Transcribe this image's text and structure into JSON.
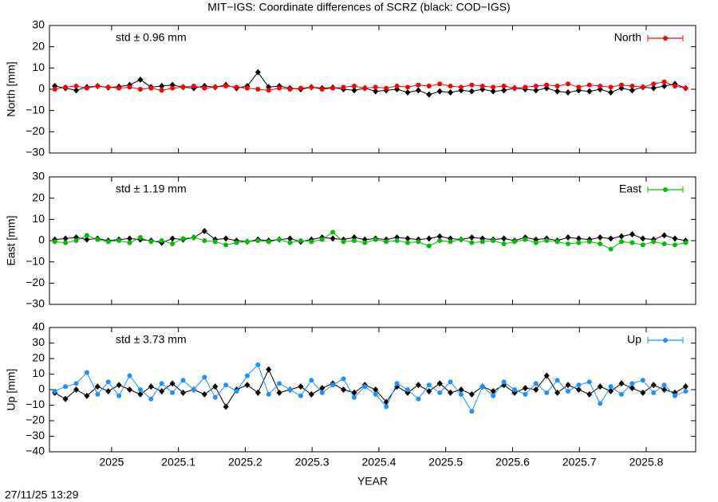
{
  "title": "MIT−IGS: Coordinate differences of SCRZ (black: COD−IGS)",
  "timestamp": "27/11/25 13:29",
  "chart_data": [
    {
      "type": "line",
      "ylabel": "North [mm]",
      "annotation": "std ± 0.96 mm",
      "legend": "top-right",
      "xlim": [
        2024.907,
        2025.874
      ],
      "xticks": [
        2025,
        2025.1,
        2025.2,
        2025.3,
        2025.4,
        2025.5,
        2025.6,
        2025.7,
        2025.8
      ],
      "show_xtick_labels": false,
      "ylim": [
        -30,
        30
      ],
      "yticks": [
        {
          "value": -30,
          "label": "−30"
        },
        {
          "value": -20,
          "label": "−20"
        },
        {
          "value": -10,
          "label": "−10"
        },
        0,
        10,
        20,
        30
      ],
      "x": [
        2024.915,
        2024.931,
        2024.947,
        2024.963,
        2024.979,
        2024.995,
        2025.011,
        2025.027,
        2025.043,
        2025.059,
        2025.075,
        2025.091,
        2025.107,
        2025.123,
        2025.139,
        2025.155,
        2025.171,
        2025.187,
        2025.203,
        2025.219,
        2025.235,
        2025.251,
        2025.267,
        2025.283,
        2025.299,
        2025.315,
        2025.331,
        2025.347,
        2025.363,
        2025.379,
        2025.395,
        2025.411,
        2025.427,
        2025.443,
        2025.459,
        2025.475,
        2025.491,
        2025.507,
        2025.523,
        2025.539,
        2025.555,
        2025.571,
        2025.587,
        2025.603,
        2025.619,
        2025.635,
        2025.651,
        2025.667,
        2025.683,
        2025.699,
        2025.715,
        2025.731,
        2025.747,
        2025.763,
        2025.779,
        2025.795,
        2025.811,
        2025.827,
        2025.843,
        2025.859
      ],
      "series": [
        {
          "color": "#000000",
          "values": [
            1.5,
            0.5,
            -0.5,
            1.0,
            1.5,
            0.8,
            1.2,
            2.0,
            4.5,
            1.0,
            1.5,
            2.0,
            1.0,
            0.5,
            1.5,
            1.0,
            2.0,
            0.5,
            1.5,
            8.0,
            1.0,
            1.5,
            0.5,
            0.0,
            1.0,
            0.5,
            0.8,
            0.0,
            -0.5,
            0.5,
            -1.0,
            -0.5,
            0.0,
            -1.5,
            -0.5,
            -2.5,
            -1.0,
            -1.5,
            -0.5,
            -1.0,
            0.0,
            -1.0,
            -0.5,
            0.5,
            0.0,
            -0.5,
            0.5,
            -1.0,
            -1.5,
            -0.5,
            -1.0,
            0.0,
            -1.5,
            0.5,
            -0.5,
            1.0,
            0.5,
            1.5,
            2.5,
            0.5
          ]
        },
        {
          "name": "North",
          "color": "#ff0000",
          "values": [
            0.0,
            1.0,
            1.5,
            0.5,
            1.5,
            1.0,
            0.5,
            1.0,
            0.0,
            0.5,
            -0.5,
            0.5,
            1.0,
            1.5,
            0.5,
            1.0,
            1.5,
            1.0,
            0.5,
            0.0,
            -0.5,
            0.5,
            0.0,
            0.5,
            1.0,
            0.0,
            0.5,
            1.0,
            1.5,
            0.5,
            1.0,
            0.5,
            1.5,
            1.0,
            2.0,
            1.5,
            2.5,
            1.5,
            1.0,
            2.0,
            1.5,
            1.0,
            1.5,
            0.5,
            1.0,
            1.5,
            2.0,
            1.5,
            2.5,
            1.0,
            2.0,
            1.5,
            1.0,
            2.0,
            1.5,
            1.0,
            2.5,
            3.5,
            1.5,
            0.5
          ]
        }
      ]
    },
    {
      "type": "line",
      "ylabel": "East [mm]",
      "annotation": "std ± 1.19 mm",
      "legend": "top-right",
      "xlim": [
        2024.907,
        2025.874
      ],
      "xticks": [
        2025,
        2025.1,
        2025.2,
        2025.3,
        2025.4,
        2025.5,
        2025.6,
        2025.7,
        2025.8
      ],
      "show_xtick_labels": false,
      "ylim": [
        -30,
        30
      ],
      "yticks": [
        {
          "value": -30,
          "label": "−30"
        },
        {
          "value": -20,
          "label": "−20"
        },
        {
          "value": -10,
          "label": "−10"
        },
        0,
        10,
        20,
        30
      ],
      "x": [
        2024.915,
        2024.931,
        2024.947,
        2024.963,
        2024.979,
        2024.995,
        2025.011,
        2025.027,
        2025.043,
        2025.059,
        2025.075,
        2025.091,
        2025.107,
        2025.123,
        2025.139,
        2025.155,
        2025.171,
        2025.187,
        2025.203,
        2025.219,
        2025.235,
        2025.251,
        2025.267,
        2025.283,
        2025.299,
        2025.315,
        2025.331,
        2025.347,
        2025.363,
        2025.379,
        2025.395,
        2025.411,
        2025.427,
        2025.443,
        2025.459,
        2025.475,
        2025.491,
        2025.507,
        2025.523,
        2025.539,
        2025.555,
        2025.571,
        2025.587,
        2025.603,
        2025.619,
        2025.635,
        2025.651,
        2025.667,
        2025.683,
        2025.699,
        2025.715,
        2025.731,
        2025.747,
        2025.763,
        2025.779,
        2025.795,
        2025.811,
        2025.827,
        2025.843,
        2025.859
      ],
      "series": [
        {
          "color": "#000000",
          "values": [
            0.5,
            1.0,
            1.5,
            0.5,
            1.0,
            0.0,
            0.5,
            1.0,
            0.5,
            0.0,
            -1.0,
            1.0,
            0.5,
            1.5,
            4.5,
            0.5,
            1.0,
            0.0,
            -0.5,
            0.5,
            0.0,
            0.5,
            1.0,
            -0.5,
            0.5,
            1.5,
            1.0,
            0.5,
            1.5,
            0.5,
            1.0,
            0.5,
            1.5,
            1.0,
            0.5,
            1.0,
            2.0,
            1.0,
            0.5,
            1.5,
            1.0,
            0.5,
            1.0,
            0.0,
            1.5,
            0.5,
            1.0,
            0.0,
            1.5,
            1.0,
            0.5,
            1.5,
            1.0,
            2.0,
            3.0,
            1.0,
            0.5,
            2.5,
            1.0,
            0.0
          ]
        },
        {
          "name": "East",
          "color": "#00c000",
          "values": [
            -0.5,
            -1.0,
            0.0,
            2.5,
            0.5,
            -0.5,
            0.0,
            -1.0,
            1.5,
            -0.5,
            0.0,
            -1.5,
            1.0,
            1.5,
            0.0,
            -0.5,
            -2.0,
            -1.0,
            -0.5,
            0.0,
            -0.5,
            0.5,
            -1.0,
            0.0,
            -0.5,
            0.5,
            4.0,
            -0.5,
            0.0,
            -1.0,
            0.5,
            -0.5,
            0.0,
            -1.0,
            -0.5,
            -2.5,
            0.0,
            -0.5,
            0.5,
            -1.0,
            -0.5,
            0.0,
            -1.5,
            -0.5,
            0.5,
            -1.0,
            0.0,
            -0.5,
            -1.5,
            -1.0,
            -0.5,
            -1.5,
            -4.0,
            -0.5,
            -1.0,
            -2.0,
            -0.5,
            -1.5,
            -2.0,
            -1.0
          ]
        }
      ]
    },
    {
      "type": "line",
      "ylabel": "Up [mm]",
      "annotation": "std ± 3.73 mm",
      "legend": "top-right",
      "xlabel": "YEAR",
      "xlim": [
        2024.907,
        2025.874
      ],
      "xticks": [
        2025,
        2025.1,
        2025.2,
        2025.3,
        2025.4,
        2025.5,
        2025.6,
        2025.7,
        2025.8
      ],
      "show_xtick_labels": true,
      "ylim": [
        -40,
        40
      ],
      "yticks": [
        {
          "value": -40,
          "label": "−40"
        },
        {
          "value": -30,
          "label": "−30"
        },
        {
          "value": -20,
          "label": "−20"
        },
        {
          "value": -10,
          "label": "−10"
        },
        0,
        10,
        20,
        30,
        40
      ],
      "x": [
        2024.915,
        2024.931,
        2024.947,
        2024.963,
        2024.979,
        2024.995,
        2025.011,
        2025.027,
        2025.043,
        2025.059,
        2025.075,
        2025.091,
        2025.107,
        2025.123,
        2025.139,
        2025.155,
        2025.171,
        2025.187,
        2025.203,
        2025.219,
        2025.235,
        2025.251,
        2025.267,
        2025.283,
        2025.299,
        2025.315,
        2025.331,
        2025.347,
        2025.363,
        2025.379,
        2025.395,
        2025.411,
        2025.427,
        2025.443,
        2025.459,
        2025.475,
        2025.491,
        2025.507,
        2025.523,
        2025.539,
        2025.555,
        2025.571,
        2025.587,
        2025.603,
        2025.619,
        2025.635,
        2025.651,
        2025.667,
        2025.683,
        2025.699,
        2025.715,
        2025.731,
        2025.747,
        2025.763,
        2025.779,
        2025.795,
        2025.811,
        2025.827,
        2025.843,
        2025.859
      ],
      "series": [
        {
          "color": "#000000",
          "values": [
            -2,
            -6,
            0,
            -4,
            2,
            -1,
            3,
            0,
            -3,
            2,
            -1,
            4,
            -2,
            0,
            -3,
            2,
            -11,
            0,
            3,
            -2,
            13,
            -2,
            0,
            2,
            -3,
            1,
            4,
            0,
            -2,
            3,
            0,
            -8,
            2,
            -2,
            3,
            -1,
            4,
            -2,
            0,
            -3,
            2,
            -1,
            3,
            -2,
            1,
            0,
            9,
            -2,
            3,
            0,
            -3,
            2,
            -1,
            4,
            1,
            -2,
            3,
            0,
            -2,
            2
          ]
        },
        {
          "name": "Up",
          "color": "#1e90ff",
          "values": [
            -1,
            2,
            4,
            11,
            -3,
            5,
            -4,
            9,
            0,
            -6,
            4,
            -2,
            6,
            0,
            8,
            -5,
            3,
            -1,
            9,
            16,
            -3,
            4,
            0,
            -4,
            6,
            -2,
            3,
            7,
            -5,
            2,
            -3,
            -11,
            4,
            0,
            -6,
            3,
            -2,
            5,
            -3,
            -14,
            2,
            -4,
            5,
            0,
            -3,
            4,
            -2,
            6,
            -1,
            3,
            5,
            -9,
            2,
            -3,
            4,
            6,
            -2,
            3,
            -4,
            -1
          ]
        }
      ]
    }
  ]
}
